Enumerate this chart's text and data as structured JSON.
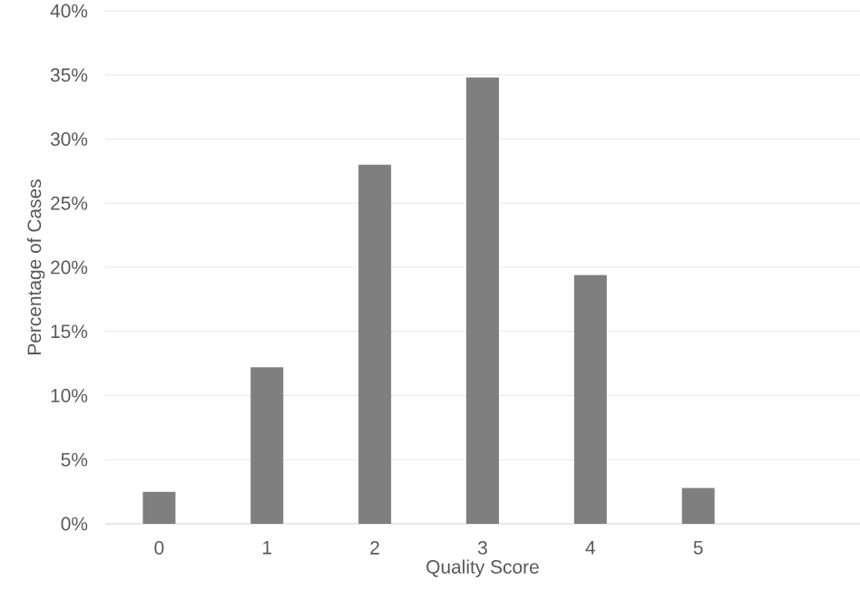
{
  "chart_data": {
    "type": "bar",
    "xlabel": "Quality Score",
    "ylabel": "Percentage of Cases",
    "categories": [
      "0",
      "1",
      "2",
      "3",
      "4",
      "5",
      null
    ],
    "values": [
      2.5,
      12.2,
      28.0,
      34.8,
      19.4,
      2.8,
      null
    ],
    "color": "#7f7f7f",
    "ylim": [
      0,
      40
    ],
    "yticks": [
      {
        "value": 0,
        "label": "0%"
      },
      {
        "value": 5,
        "label": "5%"
      },
      {
        "value": 10,
        "label": "10%"
      },
      {
        "value": 15,
        "label": "15%"
      },
      {
        "value": 20,
        "label": "20%"
      },
      {
        "value": 25,
        "label": "25%"
      },
      {
        "value": 30,
        "label": "30%"
      },
      {
        "value": 35,
        "label": "35%"
      },
      {
        "value": 40,
        "label": "40%"
      }
    ],
    "grid": "y"
  }
}
